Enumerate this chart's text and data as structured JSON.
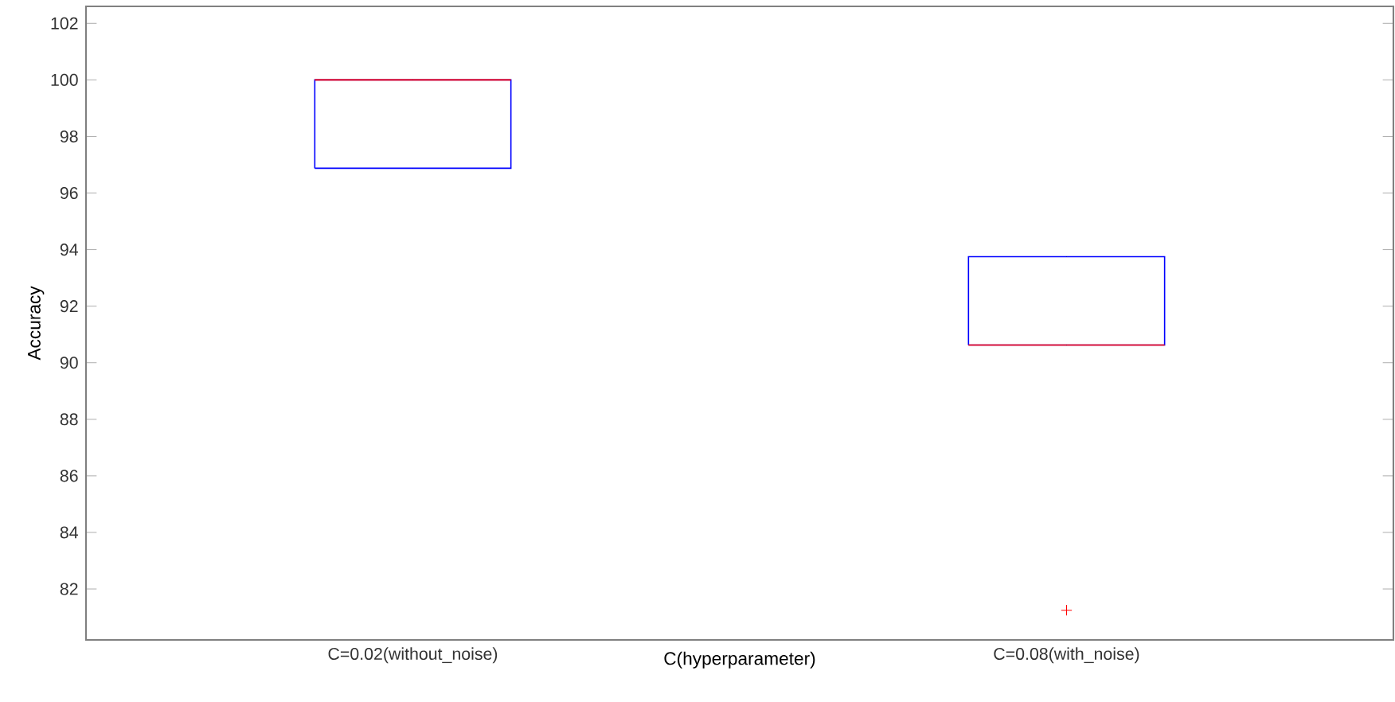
{
  "chart_data": {
    "type": "box",
    "xlabel": "C(hyperparameter)",
    "ylabel": "Accuracy",
    "categories": [
      "C=0.02(without_noise)",
      "C=0.08(with_noise)"
    ],
    "series": [
      {
        "color": "#0000ff",
        "boxes": [
          {
            "low": 96.875,
            "q1": 96.875,
            "median": 100,
            "q3": 100,
            "high": 100
          },
          {
            "low": 90.625,
            "q1": 90.625,
            "median": 90.625,
            "q3": 93.75,
            "high": 93.75,
            "outliers": [
              81.25
            ]
          }
        ]
      }
    ],
    "ylim": [
      80.2,
      102.6
    ],
    "yticks": [
      82,
      84,
      86,
      88,
      90,
      92,
      94,
      96,
      98,
      100,
      102
    ]
  }
}
